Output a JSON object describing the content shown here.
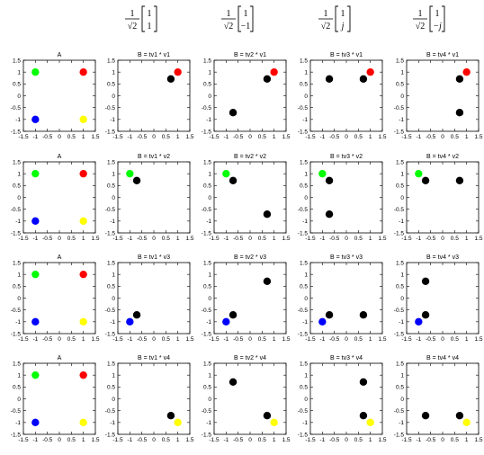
{
  "header_vectors": [
    {
      "coef_num": "1",
      "coef_den": "√2",
      "v1": "1",
      "v2": "1"
    },
    {
      "coef_num": "1",
      "coef_den": "√2",
      "v1": "1",
      "v2": "−1"
    },
    {
      "coef_num": "1",
      "coef_den": "√2",
      "v1": "1",
      "v2": "j"
    },
    {
      "coef_num": "1",
      "coef_den": "√2",
      "v1": "1",
      "v2": "−j"
    }
  ],
  "colors": {
    "red": "#ff0000",
    "green": "#00ff00",
    "blue": "#0000ff",
    "yellow": "#ffff00",
    "black": "#000000"
  },
  "chart_data": {
    "type": "scatter",
    "xlim": [
      -1.5,
      1.5
    ],
    "ylim": [
      -1.5,
      1.5
    ],
    "xticks": [
      "-1.5",
      "-1",
      "-0.5",
      "0",
      "0.5",
      "1",
      "1.5"
    ],
    "yticks": [
      "1.5",
      "1",
      "0.5",
      "0",
      "-0.5",
      "-1",
      "-1.5"
    ],
    "grid": false,
    "panels": [
      {
        "title": "A",
        "points": [
          {
            "x": -1,
            "y": 1,
            "c": "green"
          },
          {
            "x": 1,
            "y": 1,
            "c": "red"
          },
          {
            "x": -1,
            "y": -1,
            "c": "blue"
          },
          {
            "x": 1,
            "y": -1,
            "c": "yellow"
          }
        ]
      },
      {
        "title": "B = tv1 * v1",
        "points": [
          {
            "x": 0.71,
            "y": 0.71,
            "c": "black"
          },
          {
            "x": 1,
            "y": 1,
            "c": "red"
          }
        ]
      },
      {
        "title": "B = tv2 * v1",
        "points": [
          {
            "x": -0.71,
            "y": -0.71,
            "c": "black"
          },
          {
            "x": 0.71,
            "y": 0.71,
            "c": "black"
          },
          {
            "x": 1,
            "y": 1,
            "c": "red"
          }
        ]
      },
      {
        "title": "B = tv3 * v1",
        "points": [
          {
            "x": -0.71,
            "y": 0.71,
            "c": "black"
          },
          {
            "x": 0.71,
            "y": 0.71,
            "c": "black"
          },
          {
            "x": 1,
            "y": 1,
            "c": "red"
          }
        ]
      },
      {
        "title": "B = tv4 * v1",
        "points": [
          {
            "x": 0.71,
            "y": 0.71,
            "c": "black"
          },
          {
            "x": 0.71,
            "y": -0.71,
            "c": "black"
          },
          {
            "x": 1,
            "y": 1,
            "c": "red"
          }
        ]
      },
      {
        "title": "A",
        "points": [
          {
            "x": -1,
            "y": 1,
            "c": "green"
          },
          {
            "x": 1,
            "y": 1,
            "c": "red"
          },
          {
            "x": -1,
            "y": -1,
            "c": "blue"
          },
          {
            "x": 1,
            "y": -1,
            "c": "yellow"
          }
        ]
      },
      {
        "title": "B = tv1 * v2",
        "points": [
          {
            "x": -0.71,
            "y": 0.71,
            "c": "black"
          },
          {
            "x": -1,
            "y": 1,
            "c": "green"
          }
        ]
      },
      {
        "title": "B = tv2 * v2",
        "points": [
          {
            "x": -0.71,
            "y": 0.71,
            "c": "black"
          },
          {
            "x": 0.71,
            "y": -0.71,
            "c": "black"
          },
          {
            "x": -1,
            "y": 1,
            "c": "green"
          }
        ]
      },
      {
        "title": "B = tv3 * v2",
        "points": [
          {
            "x": -0.71,
            "y": 0.71,
            "c": "black"
          },
          {
            "x": -0.71,
            "y": -0.71,
            "c": "black"
          },
          {
            "x": -1,
            "y": 1,
            "c": "green"
          }
        ]
      },
      {
        "title": "B = tv4 * v2",
        "points": [
          {
            "x": -0.71,
            "y": 0.71,
            "c": "black"
          },
          {
            "x": 0.71,
            "y": 0.71,
            "c": "black"
          },
          {
            "x": -1,
            "y": 1,
            "c": "green"
          }
        ]
      },
      {
        "title": "A",
        "points": [
          {
            "x": -1,
            "y": 1,
            "c": "green"
          },
          {
            "x": 1,
            "y": 1,
            "c": "red"
          },
          {
            "x": -1,
            "y": -1,
            "c": "blue"
          },
          {
            "x": 1,
            "y": -1,
            "c": "yellow"
          }
        ]
      },
      {
        "title": "B = tv1 * v3",
        "points": [
          {
            "x": -0.71,
            "y": -0.71,
            "c": "black"
          },
          {
            "x": -1,
            "y": -1,
            "c": "blue"
          }
        ]
      },
      {
        "title": "B = tv2 * v3",
        "points": [
          {
            "x": 0.71,
            "y": 0.71,
            "c": "black"
          },
          {
            "x": -0.71,
            "y": -0.71,
            "c": "black"
          },
          {
            "x": -1,
            "y": -1,
            "c": "blue"
          }
        ]
      },
      {
        "title": "B = tv3 * v3",
        "points": [
          {
            "x": -0.71,
            "y": -0.71,
            "c": "black"
          },
          {
            "x": 0.71,
            "y": -0.71,
            "c": "black"
          },
          {
            "x": -1,
            "y": -1,
            "c": "blue"
          }
        ]
      },
      {
        "title": "B = tv4 * v3",
        "points": [
          {
            "x": -0.71,
            "y": 0.71,
            "c": "black"
          },
          {
            "x": -0.71,
            "y": -0.71,
            "c": "black"
          },
          {
            "x": -1,
            "y": -1,
            "c": "blue"
          }
        ]
      },
      {
        "title": "A",
        "points": [
          {
            "x": -1,
            "y": 1,
            "c": "green"
          },
          {
            "x": 1,
            "y": 1,
            "c": "red"
          },
          {
            "x": -1,
            "y": -1,
            "c": "blue"
          },
          {
            "x": 1,
            "y": -1,
            "c": "yellow"
          }
        ]
      },
      {
        "title": "B = tv1 * v4",
        "points": [
          {
            "x": 0.71,
            "y": -0.71,
            "c": "black"
          },
          {
            "x": 1,
            "y": -1,
            "c": "yellow"
          }
        ]
      },
      {
        "title": "B = tv2 * v4",
        "points": [
          {
            "x": -0.71,
            "y": 0.71,
            "c": "black"
          },
          {
            "x": 0.71,
            "y": -0.71,
            "c": "black"
          },
          {
            "x": 1,
            "y": -1,
            "c": "yellow"
          }
        ]
      },
      {
        "title": "B = tv3 * v4",
        "points": [
          {
            "x": 0.71,
            "y": 0.71,
            "c": "black"
          },
          {
            "x": 0.71,
            "y": -0.71,
            "c": "black"
          },
          {
            "x": 1,
            "y": -1,
            "c": "yellow"
          }
        ]
      },
      {
        "title": "B = tv4 * v4",
        "points": [
          {
            "x": -0.71,
            "y": -0.71,
            "c": "black"
          },
          {
            "x": 0.71,
            "y": -0.71,
            "c": "black"
          },
          {
            "x": 1,
            "y": -1,
            "c": "yellow"
          }
        ]
      }
    ]
  }
}
